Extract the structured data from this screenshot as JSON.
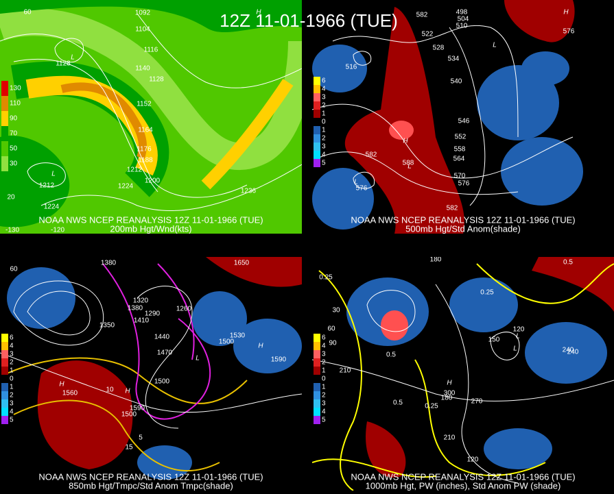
{
  "title": "12Z 11-01-1966 (TUE)",
  "wind_legend": [
    {
      "label": "130",
      "color": "#e00000"
    },
    {
      "label": "110",
      "color": "#e08a00"
    },
    {
      "label": "90",
      "color": "#ffd000"
    },
    {
      "label": "70",
      "color": "#00a000"
    },
    {
      "label": "50",
      "color": "#50c800"
    },
    {
      "label": "30",
      "color": "#90e040"
    }
  ],
  "anomaly_legend": [
    {
      "label": "6",
      "color": "#ffff00"
    },
    {
      "label": "4",
      "color": "#ffc000"
    },
    {
      "label": "3",
      "color": "#ff6060"
    },
    {
      "label": "2",
      "color": "#e02020"
    },
    {
      "label": "1",
      "color": "#a00000"
    },
    {
      "label": "0",
      "color": "#000000"
    },
    {
      "label": "1",
      "color": "#2060b0"
    },
    {
      "label": "2",
      "color": "#3090e0"
    },
    {
      "label": "3",
      "color": "#30c0f0"
    },
    {
      "label": "4",
      "color": "#00e0ff"
    },
    {
      "label": "5",
      "color": "#a020f0"
    }
  ],
  "panels": [
    {
      "caption": "NOAA NWS NCEP REANALYSIS 12Z 11-01-1966 (TUE)",
      "subcaption": "200mb Hgt/Wnd(kts)",
      "labels": [
        "60",
        "1092",
        "1104",
        "1116",
        "1128",
        "1140",
        "1128",
        "1152",
        "1164",
        "1176",
        "1188",
        "1200",
        "1212",
        "1224",
        "1212",
        "1224",
        "1236",
        "20",
        "-130",
        "-120",
        "L",
        "L",
        "H"
      ]
    },
    {
      "caption": "NOAA NWS NCEP REANALYSIS 12Z 11-01-1966 (TUE)",
      "subcaption": "500mb Hgt/Std Anom(shade)",
      "labels": [
        "498",
        "504",
        "510",
        "522",
        "528",
        "516",
        "534",
        "540",
        "546",
        "552",
        "558",
        "564",
        "570",
        "576",
        "582",
        "588",
        "582",
        "576",
        "582",
        "576",
        "H",
        "L",
        "L",
        "H",
        "L"
      ]
    },
    {
      "caption": "NOAA NWS NCEP REANALYSIS 12Z 11-01-1966 (TUE)",
      "subcaption": "850mb Hgt/Tmpc/Std Anom Tmpc(shade)",
      "labels": [
        "60",
        "1380",
        "1650",
        "1320",
        "1380",
        "1410",
        "1290",
        "1260",
        "1350",
        "1440",
        "1470",
        "1500",
        "1530",
        "1500",
        "1590",
        "1560",
        "1590",
        "1500",
        "10",
        "5",
        "15",
        "H",
        "H",
        "H",
        "L"
      ]
    },
    {
      "caption": "NOAA NWS NCEP REANALYSIS 12Z 11-01-1966 (TUE)",
      "subcaption": "1000mb Hgt, PW (inches), Std Anom PW (shade)",
      "labels": [
        "180",
        "0.25",
        "0.5",
        "0.5",
        "0.25",
        "30",
        "60",
        "90",
        "120",
        "150",
        "180",
        "210",
        "240",
        "270",
        "300",
        "0.5",
        "0.25",
        "210",
        "240",
        "120",
        "H",
        "L",
        "L"
      ]
    }
  ]
}
